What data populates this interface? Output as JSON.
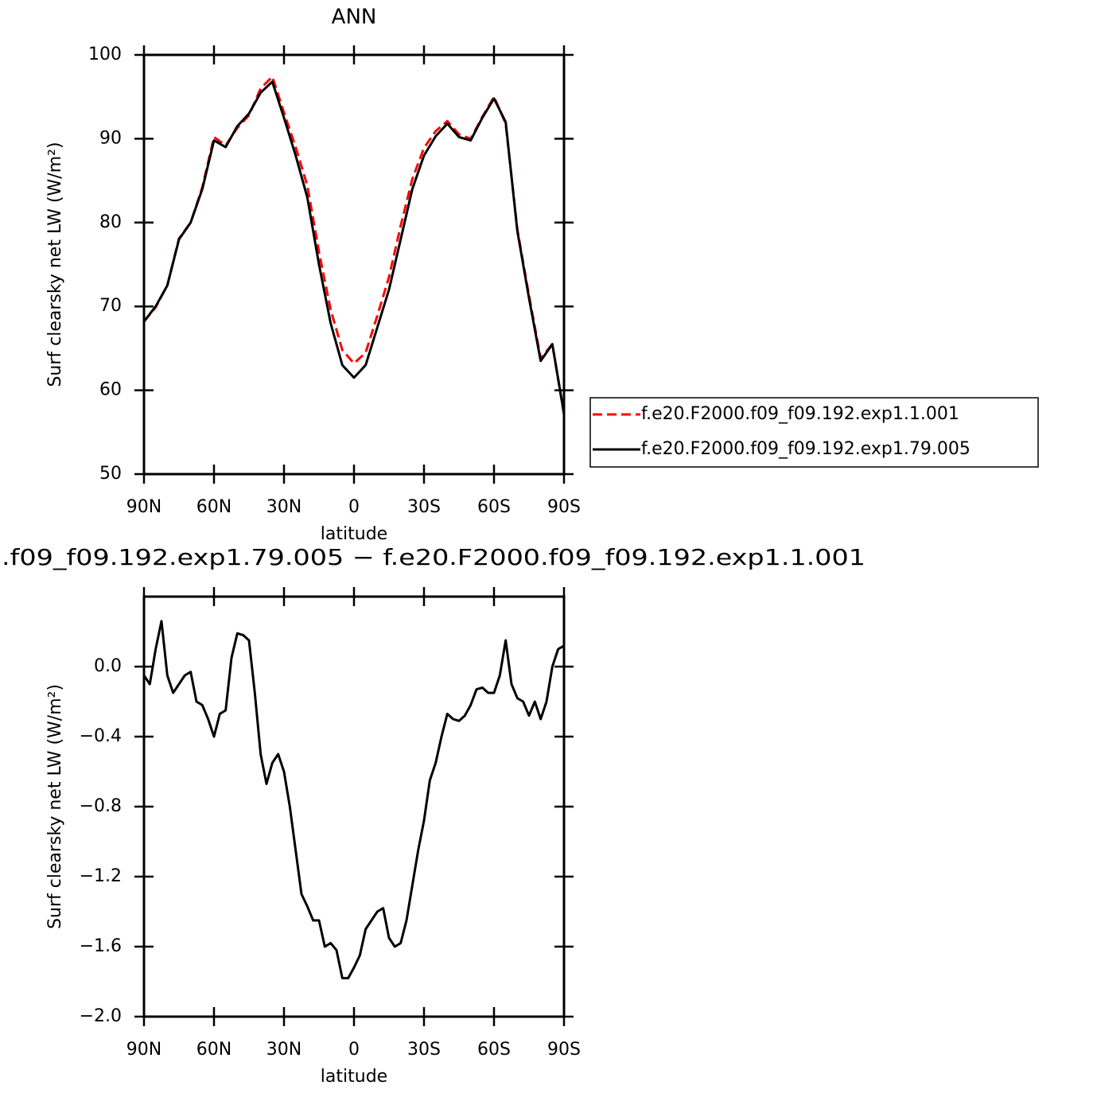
{
  "chart_data": [
    {
      "type": "line",
      "title": "ANN",
      "xlabel": "latitude",
      "ylabel": "Surf clearsky net LW (W/m²)",
      "x": [
        90,
        85,
        80,
        75,
        70,
        65,
        60,
        55,
        50,
        45,
        40,
        35,
        30,
        25,
        20,
        15,
        10,
        5,
        0,
        -5,
        -10,
        -15,
        -20,
        -25,
        -30,
        -35,
        -40,
        -45,
        -50,
        -55,
        -60,
        -65,
        -70,
        -75,
        -80,
        -85,
        -90
      ],
      "xlim": [
        90,
        -90
      ],
      "xticks": [
        {
          "value": 90,
          "label": "90N"
        },
        {
          "value": 60,
          "label": "60N"
        },
        {
          "value": 30,
          "label": "30N"
        },
        0,
        {
          "value": -30,
          "label": "30S"
        },
        {
          "value": -60,
          "label": "60S"
        },
        {
          "value": -90,
          "label": "90S"
        }
      ],
      "ylim": [
        50,
        100
      ],
      "yticks": [
        50,
        60,
        70,
        80,
        90,
        100
      ],
      "legend": "right",
      "series": [
        {
          "name": "f.e20.F2000.f09_f09.192.exp1.1.001",
          "color": "#ff0000",
          "dash": true,
          "values": [
            68.2,
            69.9,
            72.5,
            78.1,
            80.0,
            84.2,
            90.2,
            89.2,
            91.3,
            92.8,
            96.0,
            97.4,
            93.1,
            89.0,
            84.4,
            76.5,
            69.6,
            64.8,
            63.2,
            64.5,
            68.9,
            73.5,
            79.6,
            85.2,
            88.9,
            90.9,
            92.1,
            90.5,
            90.0,
            92.6,
            95.0,
            91.8,
            79.2,
            71.3,
            63.8,
            65.5,
            57.1
          ]
        },
        {
          "name": "f.e20.F2000.f09_f09.192.exp1.79.005",
          "color": "#000000",
          "dash": false,
          "values": [
            68.2,
            70.0,
            72.5,
            78.0,
            80.0,
            84.0,
            89.8,
            89.0,
            91.5,
            93.0,
            95.5,
            96.8,
            92.5,
            88.0,
            83.0,
            75.0,
            68.0,
            63.0,
            61.5,
            63.0,
            67.5,
            72.0,
            78.0,
            84.0,
            88.0,
            90.3,
            91.8,
            90.2,
            89.8,
            92.5,
            94.8,
            92.0,
            79.0,
            71.0,
            63.5,
            65.5,
            57.2
          ]
        }
      ]
    },
    {
      "type": "line",
      "title": ".f09_f09.192.exp1.79.005 − f.e20.F2000.f09_f09.192.exp1.1.001",
      "xlabel": "latitude",
      "ylabel": "Surf clearsky net LW (W/m²)",
      "x": [
        90,
        87.5,
        85,
        82.5,
        80,
        77.5,
        75,
        72.5,
        70,
        67.5,
        65,
        62.5,
        60,
        57.5,
        55,
        52.5,
        50,
        47.5,
        45,
        42.5,
        40,
        37.5,
        35,
        32.5,
        30,
        27.5,
        25,
        22.5,
        20,
        17.5,
        15,
        12.5,
        10,
        7.5,
        5,
        2.5,
        0,
        -2.5,
        -5,
        -7.5,
        -10,
        -12.5,
        -15,
        -17.5,
        -20,
        -22.5,
        -25,
        -27.5,
        -30,
        -32.5,
        -35,
        -37.5,
        -40,
        -42.5,
        -45,
        -47.5,
        -50,
        -52.5,
        -55,
        -57.5,
        -60,
        -62.5,
        -65,
        -67.5,
        -70,
        -72.5,
        -75,
        -77.5,
        -80,
        -82.5,
        -85,
        -87.5,
        -90
      ],
      "xlim": [
        90,
        -90
      ],
      "xticks": [
        {
          "value": 90,
          "label": "90N"
        },
        {
          "value": 60,
          "label": "60N"
        },
        {
          "value": 30,
          "label": "30N"
        },
        0,
        {
          "value": -30,
          "label": "30S"
        },
        {
          "value": -60,
          "label": "60S"
        },
        {
          "value": -90,
          "label": "90S"
        }
      ],
      "ylim": [
        -2.0,
        0.4
      ],
      "yticks": [
        {
          "value": -2,
          "label": "−2.0"
        },
        {
          "value": -1.6,
          "label": "−1.6"
        },
        {
          "value": -1.2,
          "label": "−1.2"
        },
        {
          "value": -0.8,
          "label": "−0.8"
        },
        {
          "value": -0.4,
          "label": "−0.4"
        },
        {
          "value": 0,
          "label": "0.0"
        }
      ],
      "series": [
        {
          "color": "#000000",
          "dash": false,
          "values": [
            -0.05,
            -0.1,
            0.1,
            0.26,
            -0.05,
            -0.15,
            -0.1,
            -0.05,
            -0.03,
            -0.2,
            -0.22,
            -0.3,
            -0.4,
            -0.27,
            -0.25,
            0.05,
            0.19,
            0.18,
            0.15,
            -0.15,
            -0.5,
            -0.67,
            -0.55,
            -0.5,
            -0.6,
            -0.8,
            -1.05,
            -1.3,
            -1.37,
            -1.45,
            -1.45,
            -1.6,
            -1.58,
            -1.62,
            -1.78,
            -1.78,
            -1.72,
            -1.65,
            -1.5,
            -1.45,
            -1.4,
            -1.38,
            -1.55,
            -1.6,
            -1.58,
            -1.45,
            -1.25,
            -1.05,
            -0.88,
            -0.65,
            -0.55,
            -0.4,
            -0.27,
            -0.3,
            -0.31,
            -0.28,
            -0.22,
            -0.13,
            -0.12,
            -0.15,
            -0.15,
            -0.05,
            0.15,
            -0.1,
            -0.18,
            -0.2,
            -0.28,
            -0.2,
            -0.3,
            -0.2,
            0.0,
            0.1,
            0.12
          ]
        }
      ]
    }
  ]
}
